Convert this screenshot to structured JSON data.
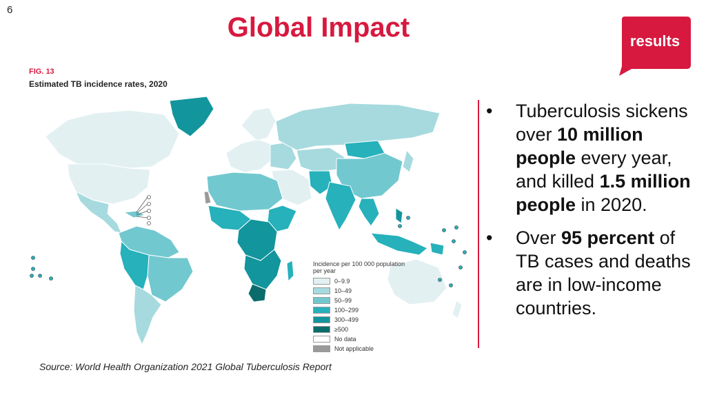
{
  "slide_number": "6",
  "title": "Global Impact",
  "logo_text": "results",
  "colors": {
    "accent": "#d7193f",
    "c0": "#e2f0f2",
    "c1": "#a6dade",
    "c2": "#72c8cf",
    "c3": "#26b1bb",
    "c4": "#12959c",
    "c5": "#0b6c6c",
    "no_data": "#ffffff",
    "na": "#9a9a9a"
  },
  "figure": {
    "label": "FIG. 13",
    "caption": "Estimated TB incidence rates, 2020",
    "legend_title": "Incidence per 100 000 population per year",
    "legend": [
      {
        "label": "0–9.9",
        "color": "#e2f0f2"
      },
      {
        "label": "10–49",
        "color": "#a6dade"
      },
      {
        "label": "50–99",
        "color": "#72c8cf"
      },
      {
        "label": "100–299",
        "color": "#26b1bb"
      },
      {
        "label": "300–499",
        "color": "#12959c"
      },
      {
        "label": "≥500",
        "color": "#0b6c6c"
      },
      {
        "label": "No data",
        "color": "#ffffff"
      },
      {
        "label": "Not applicable",
        "color": "#9a9a9a"
      }
    ]
  },
  "bullets": [
    {
      "t1": "Tuberculosis sickens over ",
      "b1": "10 million people",
      "t2": " every year, and killed ",
      "b2": "1.5 million people",
      "t3": " in 2020."
    },
    {
      "t1": "Over ",
      "b1": "95 percent",
      "t2": " of TB cases and deaths are in low-income countries."
    }
  ],
  "source": "Source: World Health Organization 2021 Global Tuberculosis Report"
}
